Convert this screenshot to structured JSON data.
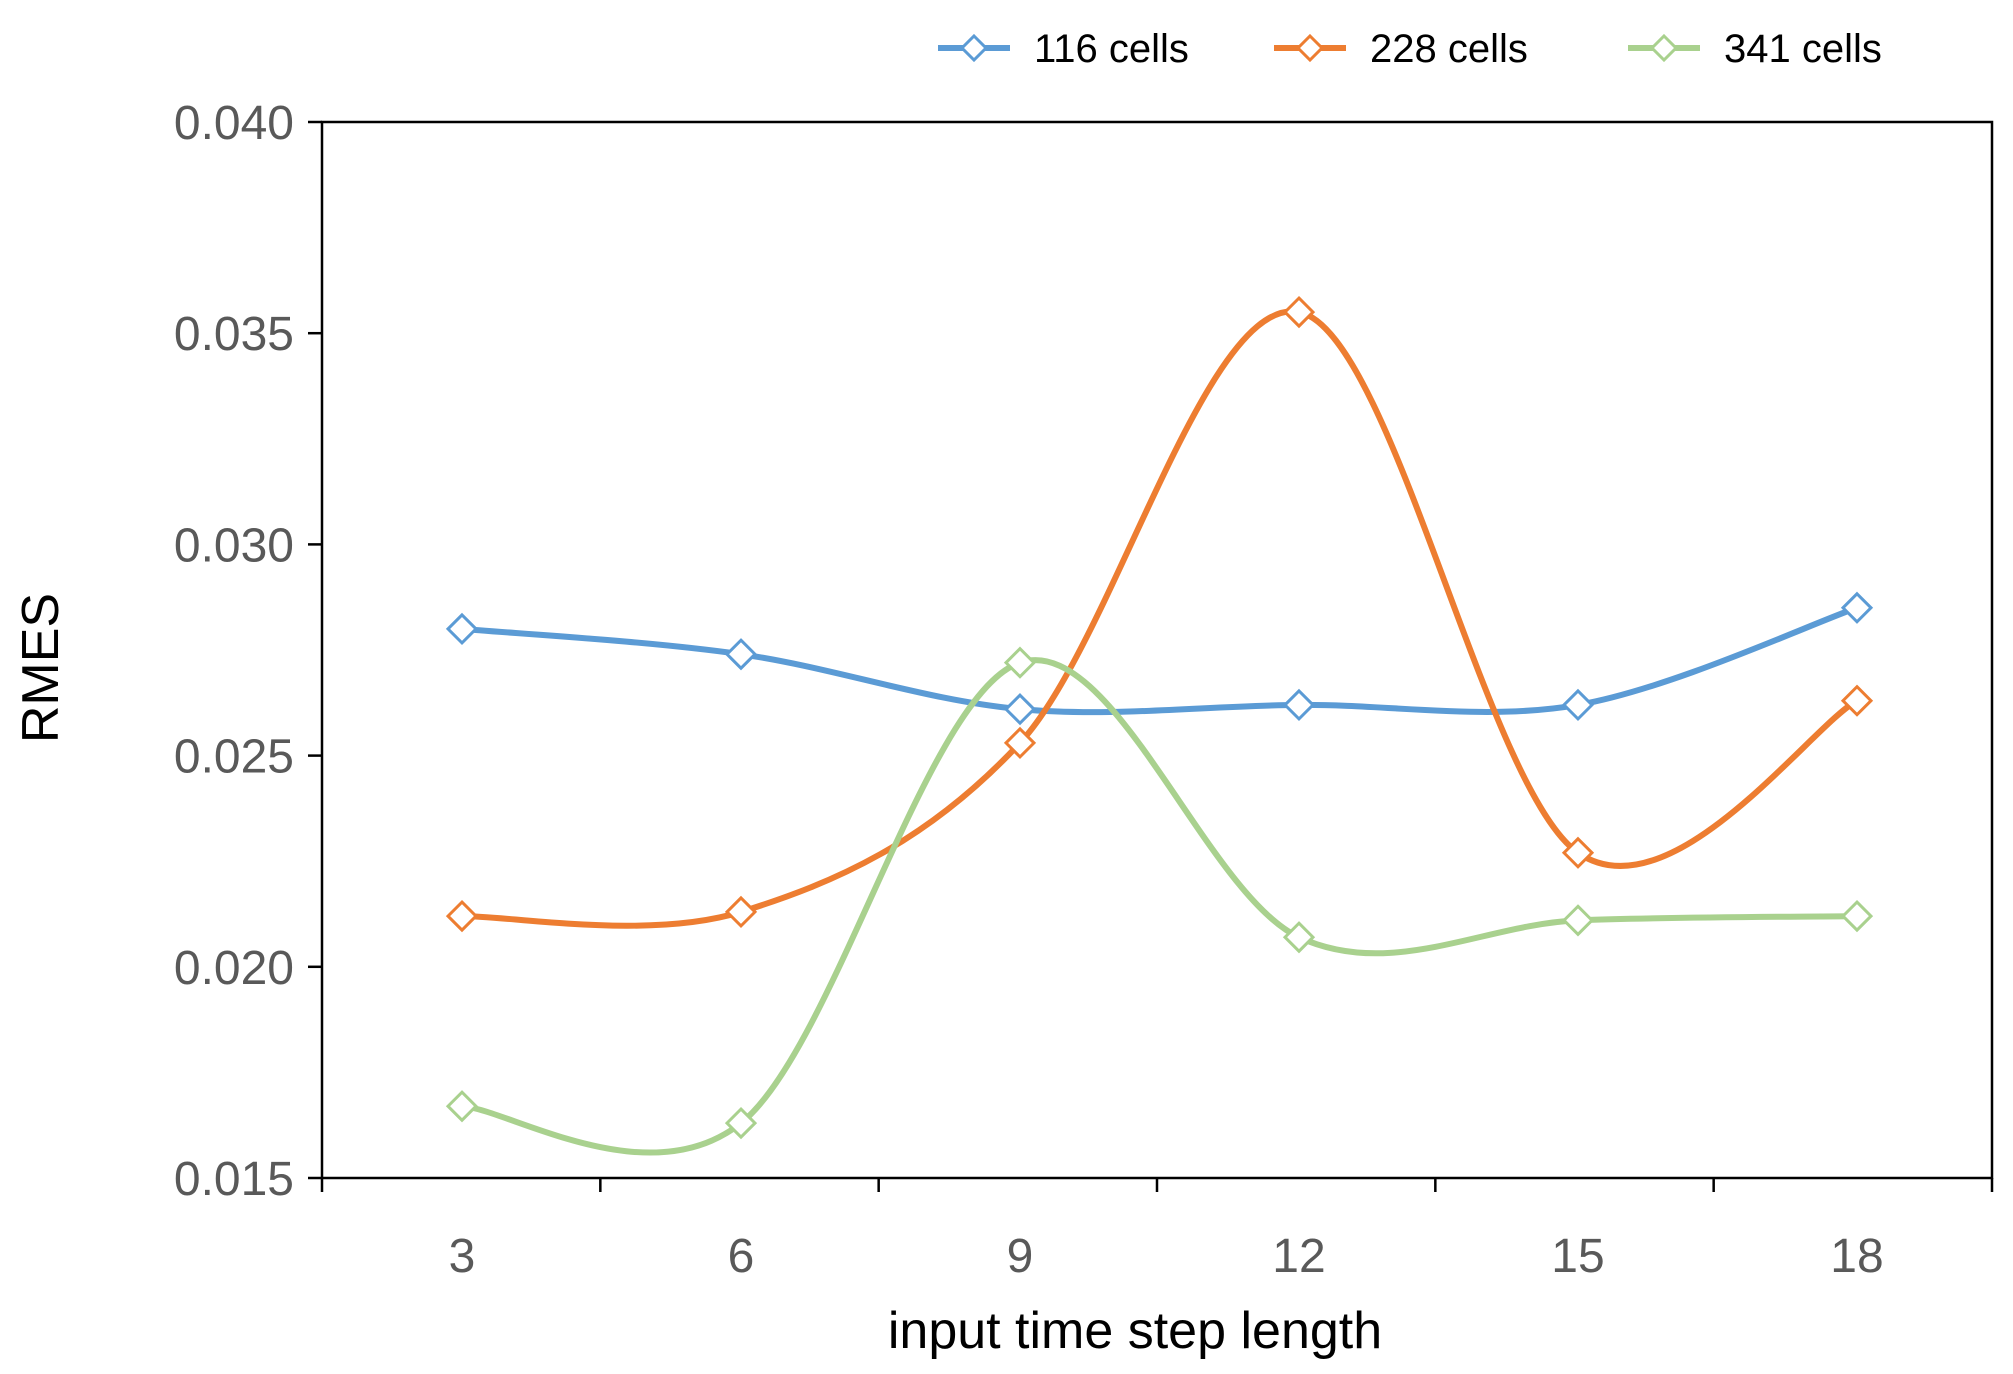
{
  "chart_data": {
    "type": "line",
    "title": "",
    "xlabel": "input time step length",
    "ylabel": "RMES",
    "x": [
      3,
      6,
      9,
      12,
      15,
      18
    ],
    "x_tick_labels": [
      "3",
      "6",
      "9",
      "12",
      "15",
      "18"
    ],
    "ylim": [
      0.015,
      0.04
    ],
    "y_ticks": [
      0.015,
      0.02,
      0.025,
      0.03,
      0.035,
      0.04
    ],
    "y_tick_labels": [
      "0.015",
      "0.020",
      "0.025",
      "0.030",
      "0.035",
      "0.040"
    ],
    "grid": false,
    "legend_position": "top-right",
    "series": [
      {
        "name": "116 cells",
        "color": "#5B9BD5",
        "values": [
          0.028,
          0.0274,
          0.0261,
          0.0262,
          0.0262,
          0.0285
        ]
      },
      {
        "name": "228 cells",
        "color": "#ED7D31",
        "values": [
          0.0212,
          0.0213,
          0.0253,
          0.0355,
          0.0227,
          0.0263
        ]
      },
      {
        "name": "341 cells",
        "color": "#A9D18E",
        "values": [
          0.0167,
          0.0163,
          0.0272,
          0.0207,
          0.0211,
          0.0212
        ]
      }
    ]
  }
}
